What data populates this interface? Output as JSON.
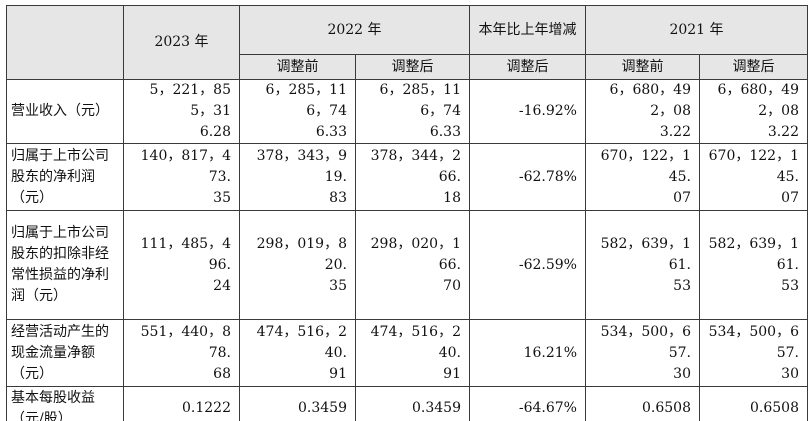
{
  "table": {
    "headers": {
      "year_2023": "2023 年",
      "year_2022": "2022 年",
      "change": "本年比上年增减",
      "year_2021": "2021 年",
      "before_adjust": "调整前",
      "after_adjust": "调整后"
    },
    "rows": [
      {
        "label": "营业收入（元）",
        "v2023": [
          "5，221，855，31",
          "6.28"
        ],
        "v2022_before": [
          "6，285，116，74",
          "6.33"
        ],
        "v2022_after": [
          "6，285，116，74",
          "6.33"
        ],
        "change": "-16.92%",
        "v2021_before": [
          "6，680，492，08",
          "3.22"
        ],
        "v2021_after": [
          "6，680，492，08",
          "3.22"
        ]
      },
      {
        "label": "归属于上市公司股东的净利润（元）",
        "v2023": [
          "140，817，473.",
          "35"
        ],
        "v2022_before": [
          "378，343，919.",
          "83"
        ],
        "v2022_after": [
          "378，344，266.",
          "18"
        ],
        "change": "-62.78%",
        "v2021_before": [
          "670，122，145.",
          "07"
        ],
        "v2021_after": [
          "670，122，145.",
          "07"
        ]
      },
      {
        "label": "归属于上市公司股东的扣除非经常性损益的净利润（元）",
        "v2023": [
          "111，485，496.",
          "24"
        ],
        "v2022_before": [
          "298，019，820.",
          "35"
        ],
        "v2022_after": [
          "298，020，166.",
          "70"
        ],
        "change": "-62.59%",
        "v2021_before": [
          "582，639，161.",
          "53"
        ],
        "v2021_after": [
          "582，639，161.",
          "53"
        ]
      },
      {
        "label": "经营活动产生的现金流量净额（元）",
        "v2023": [
          "551，440，878.",
          "68"
        ],
        "v2022_before": [
          "474，516，240.",
          "91"
        ],
        "v2022_after": [
          "474，516，240.",
          "91"
        ],
        "change": "16.21%",
        "v2021_before": [
          "534，500，657.",
          "30"
        ],
        "v2021_after": [
          "534，500，657.",
          "30"
        ]
      },
      {
        "label": "基本每股收益（元/股）",
        "v2023": [
          "0.1222"
        ],
        "v2022_before": [
          "0.3459"
        ],
        "v2022_after": [
          "0.3459"
        ],
        "change": "-64.67%",
        "v2021_before": [
          "0.6508"
        ],
        "v2021_after": [
          "0.6508"
        ]
      }
    ]
  }
}
